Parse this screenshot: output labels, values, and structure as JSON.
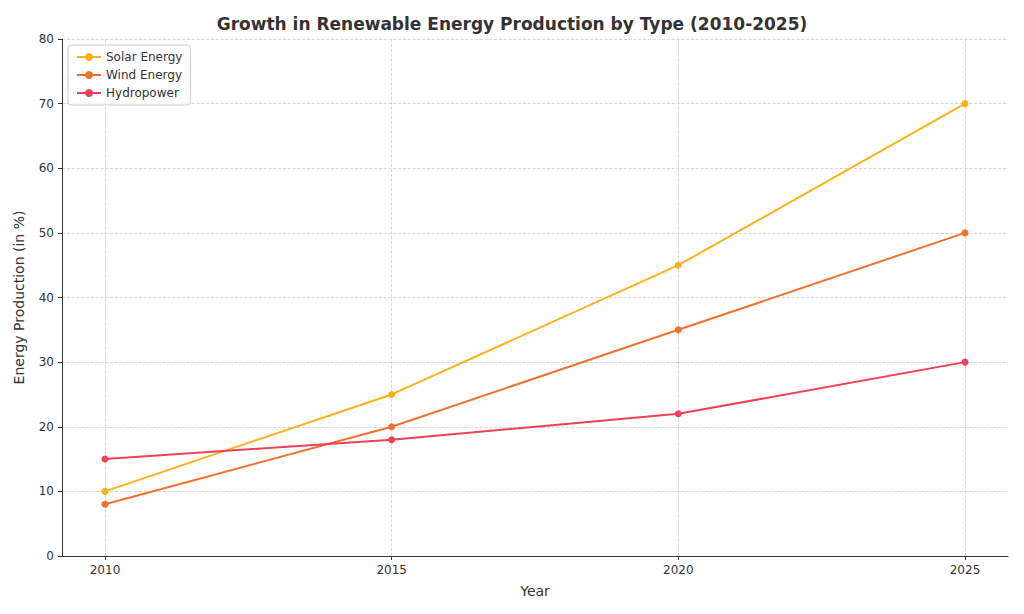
{
  "chart_data": {
    "type": "line",
    "title": "Growth in Renewable Energy Production by Type (2010-2025)",
    "x_label": "Year",
    "y_label": "Energy Production (in %)",
    "x": [
      2010,
      2015,
      2020,
      2025
    ],
    "series": [
      {
        "name": "Solar Energy",
        "color": "#f9b21b",
        "values": [
          10,
          25,
          45,
          70
        ]
      },
      {
        "name": "Wind Energy",
        "color": "#f07030",
        "values": [
          8,
          20,
          35,
          50
        ]
      },
      {
        "name": "Hydropower",
        "color": "#ef4058",
        "values": [
          15,
          18,
          22,
          30
        ]
      }
    ],
    "xlim": [
      2009.25,
      2025.75
    ],
    "xticks": [
      2010,
      2015,
      2020,
      2025
    ],
    "ylim": [
      0,
      80
    ],
    "yticks": [
      0,
      10,
      20,
      30,
      40,
      50,
      60,
      70,
      80
    ],
    "grid": true,
    "legend": "upper left",
    "marker": "circle",
    "line_style": "solid"
  }
}
